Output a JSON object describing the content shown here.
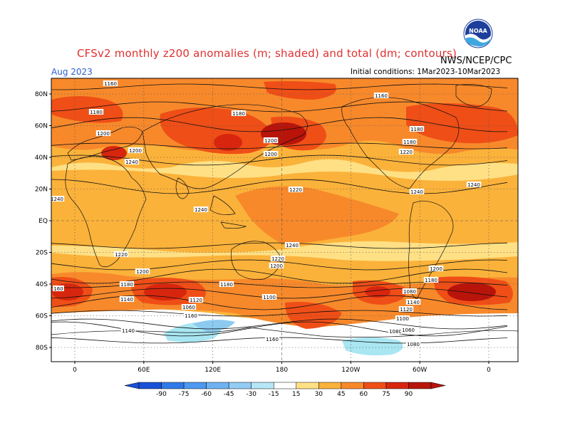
{
  "header": {
    "title": "CFSv2 monthly z200 anomalies (m; shaded) and total (dm; contours)",
    "valid_month": "Aug 2023",
    "agency": "NWS/NCEP/CPC",
    "initial_conditions": "Initial conditions: 1Mar2023-10Mar2023",
    "logo_text": "NOAA"
  },
  "map": {
    "lat_labels": [
      "80N",
      "60N",
      "40N",
      "20N",
      "EQ",
      "20S",
      "40S",
      "60S",
      "80S"
    ],
    "lon_labels": [
      "0",
      "60E",
      "120E",
      "180",
      "120W",
      "60W",
      "0"
    ],
    "contour_labels": [
      "1160",
      "1180",
      "1180",
      "1160",
      "1180",
      "1200",
      "1200",
      "1180",
      "1200",
      "1200",
      "1220",
      "1240",
      "1220",
      "1240",
      "1240",
      "1240",
      "1240",
      "1240",
      "1220",
      "1220",
      "1200",
      "1200",
      "1200",
      "1180",
      "1180",
      "1180",
      "160",
      "1140",
      "1120",
      "1100",
      "1080",
      "1060",
      "1160",
      "1140",
      "1160",
      "1140",
      "1120",
      "1100",
      "1080",
      "1060",
      "1080"
    ],
    "colors": {
      "ocean_neutral": "#ffffff",
      "pos_15_30": "#ffe085",
      "pos_30_45": "#fbb23a",
      "pos_45_60": "#f7892b",
      "pos_60_75": "#ef4e17",
      "pos_75_90": "#d8260e",
      "pos_90": "#b8140a",
      "neg_15_30": "#a8e6f2",
      "neg_30_45": "#8ccaf0"
    }
  },
  "colorbar": {
    "ticks": [
      "-90",
      "-75",
      "-60",
      "-45",
      "-30",
      "-15",
      "15",
      "30",
      "45",
      "60",
      "75",
      "90"
    ],
    "colors": [
      "#1a4fd8",
      "#2f7ae8",
      "#4d98f0",
      "#6fb2f2",
      "#92ccf5",
      "#b6e6f7",
      "#ffffff",
      "#ffe085",
      "#fbb23a",
      "#f7892b",
      "#ef4e17",
      "#d8260e",
      "#b8140a"
    ]
  }
}
